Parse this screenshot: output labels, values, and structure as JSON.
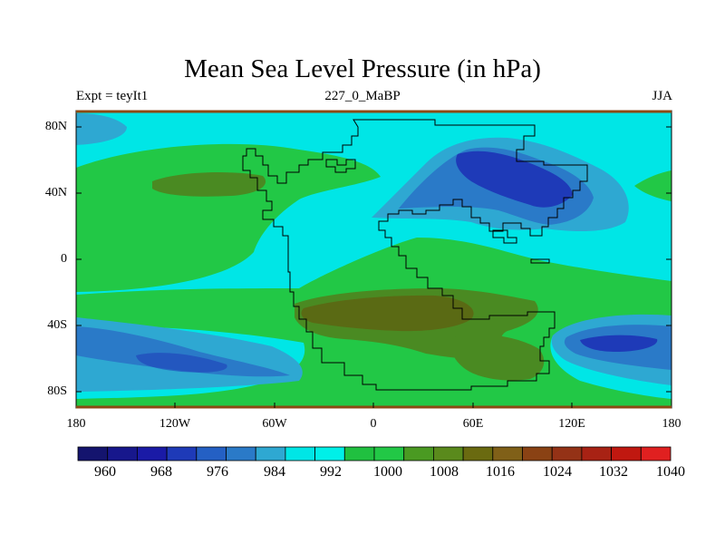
{
  "title": "Mean Sea Level Pressure (in hPa)",
  "left_subtitle": "Expt = teyIt1",
  "center_subtitle": "227_0_MaBP",
  "right_subtitle": "JJA",
  "lat_labels": [
    "80N",
    "40N",
    "0",
    "40S",
    "80S"
  ],
  "lon_labels": [
    "180",
    "120W",
    "60W",
    "0",
    "60E",
    "120E",
    "180"
  ],
  "colorbar": {
    "labels": [
      "960",
      "968",
      "976",
      "984",
      "992",
      "1000",
      "1008",
      "1016",
      "1024",
      "1032",
      "1040"
    ],
    "colors": [
      "#14146e",
      "#17178c",
      "#1a1aa6",
      "#1e3ab8",
      "#2460c4",
      "#2a7ac8",
      "#2ea8d2",
      "#00e6e6",
      "#00f0e8",
      "#20c040",
      "#22c846",
      "#4a9a22",
      "#5a8a1c",
      "#6a6a10",
      "#806018",
      "#8a4214",
      "#943216",
      "#a82214",
      "#c01810",
      "#e02020"
    ]
  },
  "map_colors": {
    "deep_blue": "#1e3ab8",
    "mid_blue": "#2a7ac8",
    "light_blue": "#2ea8d2",
    "cyan": "#00e6e6",
    "green": "#22c846",
    "olive": "#4a8a22",
    "brown": "#5a6a14",
    "frame": "#8b4a14"
  }
}
